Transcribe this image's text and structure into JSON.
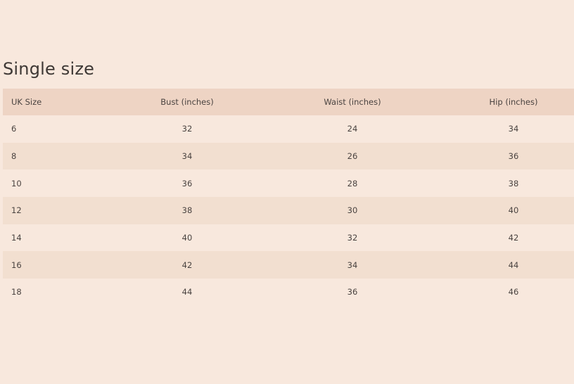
{
  "title": "Single size",
  "table": {
    "headers": [
      "UK Size",
      "Bust (inches)",
      "Waist (inches)",
      "Hip (inches)"
    ],
    "rows": [
      [
        "6",
        "32",
        "24",
        "34"
      ],
      [
        "8",
        "34",
        "26",
        "36"
      ],
      [
        "10",
        "36",
        "28",
        "38"
      ],
      [
        "12",
        "38",
        "30",
        "40"
      ],
      [
        "14",
        "40",
        "32",
        "42"
      ],
      [
        "16",
        "42",
        "34",
        "44"
      ],
      [
        "18",
        "44",
        "36",
        "46"
      ]
    ]
  },
  "colors": {
    "background": "#f8e8dd",
    "header": "#eed4c4",
    "alt_row": "#f2dfd0"
  }
}
